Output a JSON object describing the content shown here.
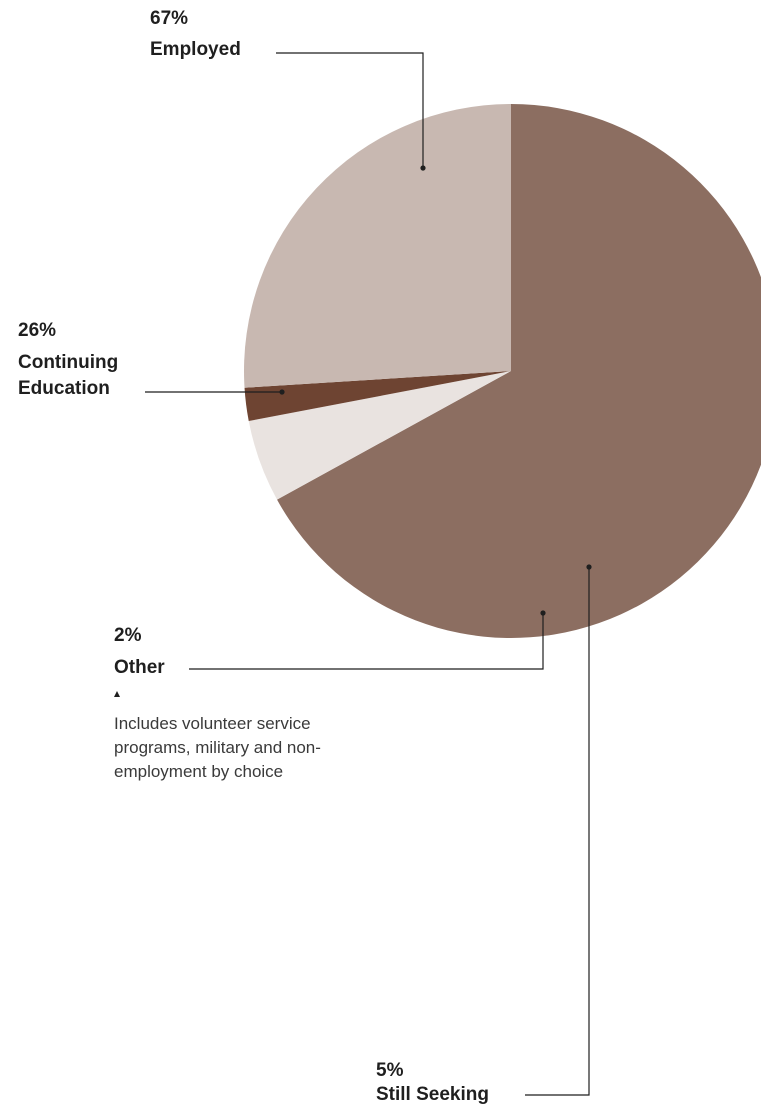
{
  "chart_data": {
    "type": "pie",
    "slices": [
      {
        "key": "employed",
        "label": "Employed",
        "value": 67,
        "value_label": "67%",
        "color": "#8c6e61"
      },
      {
        "key": "still_seeking",
        "label": "Still Seeking",
        "value": 5,
        "value_label": "5%",
        "color": "#e9e3e0"
      },
      {
        "key": "other",
        "label": "Other",
        "value": 2,
        "value_label": "2%",
        "color": "#6e4432"
      },
      {
        "key": "continuing_education",
        "label": "Continuing Education",
        "label_lines": [
          "Continuing",
          "Education"
        ],
        "value": 26,
        "value_label": "26%",
        "color": "#c8b8b1"
      }
    ],
    "annotations": {
      "other_note": "Includes volunteer service programs, military and non-employment by choice"
    }
  }
}
